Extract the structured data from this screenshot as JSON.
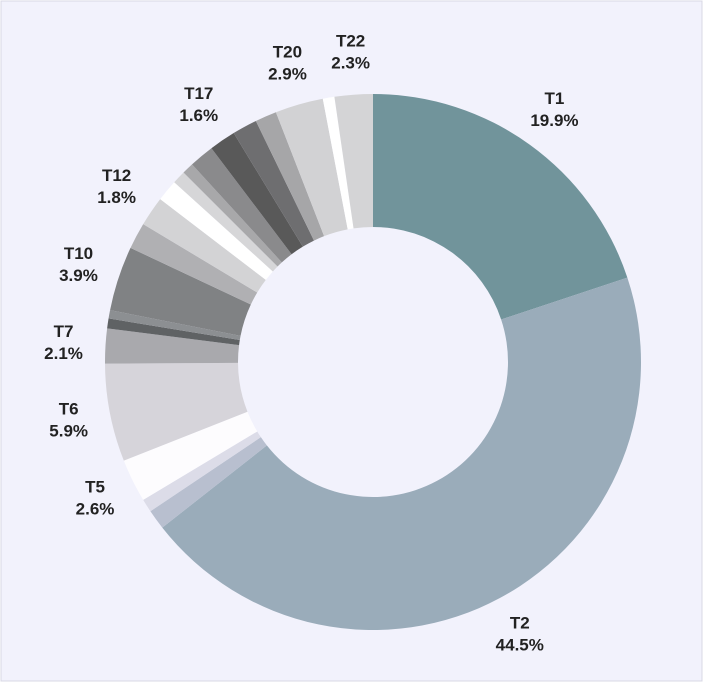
{
  "chart_data": {
    "type": "donut",
    "categories": [
      "T1",
      "T2",
      null,
      null,
      "T5",
      "T6",
      "T7",
      null,
      null,
      "T10",
      null,
      "T12",
      null,
      null,
      null,
      null,
      "T17",
      null,
      null,
      "T20",
      null,
      "T22"
    ],
    "values": [
      19.9,
      44.5,
      1.2,
      0.8,
      2.6,
      5.9,
      2.1,
      0.6,
      0.5,
      3.9,
      1.6,
      1.8,
      1.3,
      0.8,
      0.7,
      1.5,
      1.6,
      1.5,
      1.3,
      2.9,
      0.7,
      2.3
    ],
    "value_labels": [
      "19.9%",
      "44.5%",
      null,
      null,
      "2.6%",
      "5.9%",
      "2.1%",
      null,
      null,
      "3.9%",
      null,
      "1.8%",
      null,
      null,
      null,
      null,
      "1.6%",
      null,
      null,
      "2.9%",
      null,
      "2.3%"
    ],
    "colors": [
      "#71949b",
      "#9aacba",
      "#b8bfcf",
      "#dcdce8",
      "#fdfcfe",
      "#d6d4da",
      "#a9a9ad",
      "#5f6264",
      "#8c8f92",
      "#808284",
      "#b0b0b3",
      "#d3d3d5",
      "#ffffff",
      "#d6d6d8",
      "#a8a8aa",
      "#8a8a8c",
      "#595959",
      "#6e6e70",
      "#a6a6a8",
      "#d2d2d4",
      "#ffffff",
      "#d4d4d6"
    ]
  }
}
